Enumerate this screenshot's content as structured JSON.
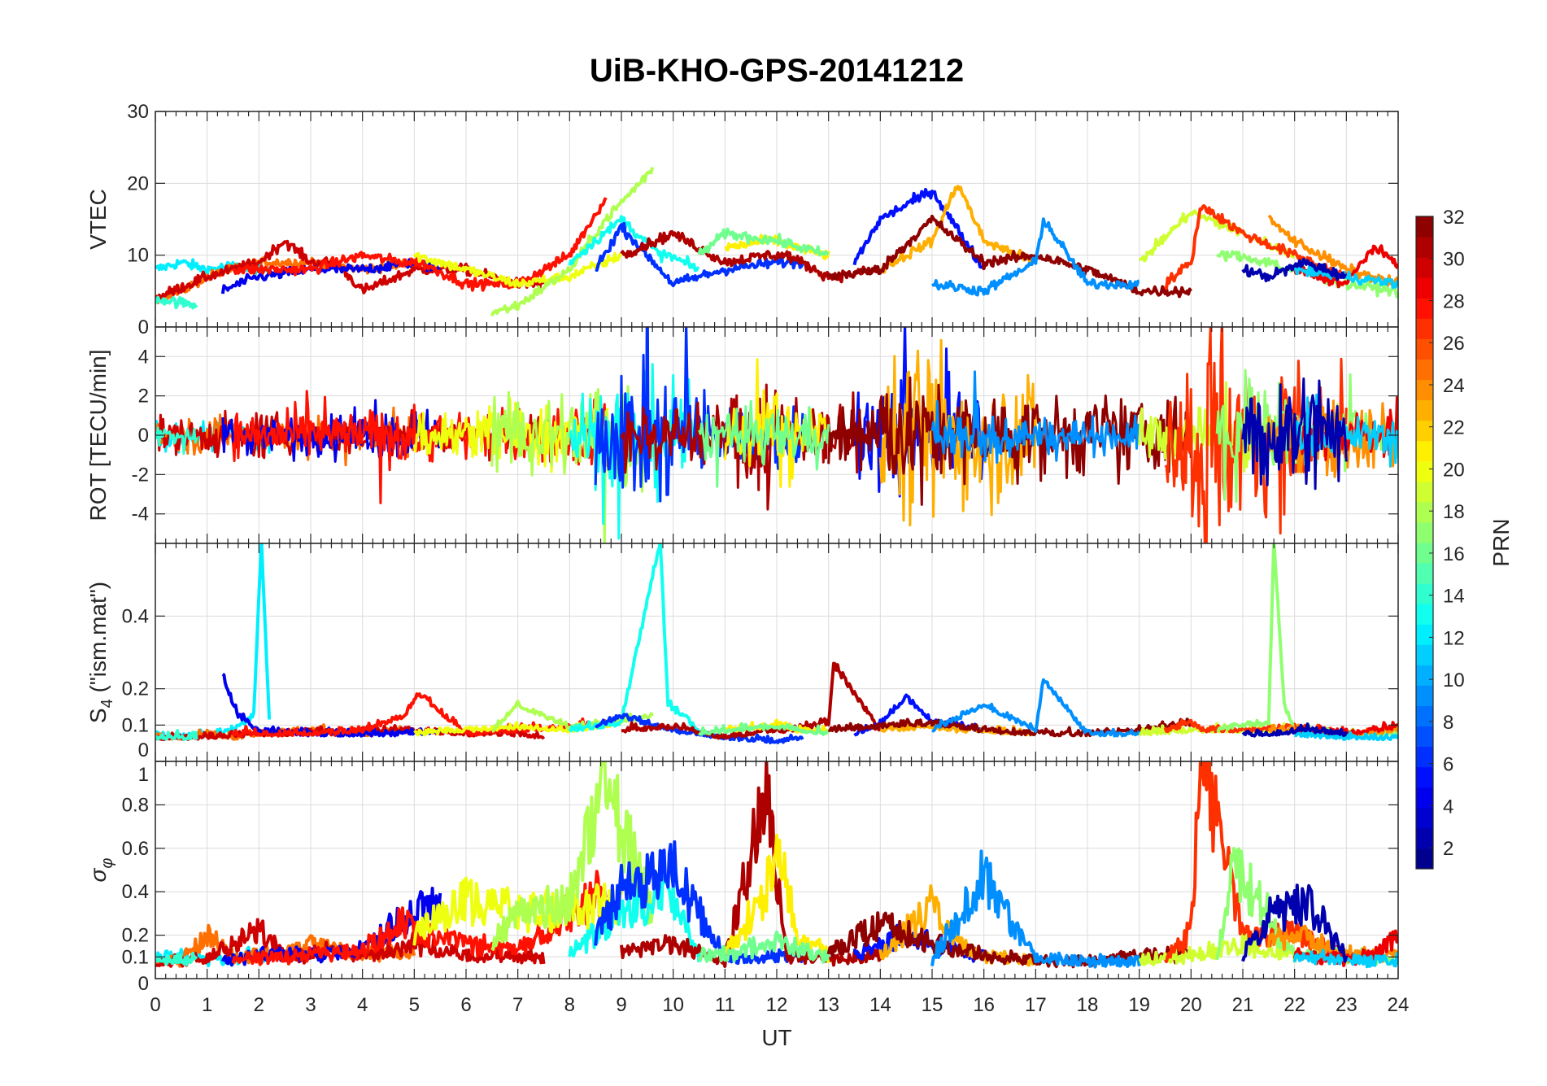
{
  "chart_data": {
    "type": "line",
    "title": "UiB-KHO-GPS-20141212",
    "xlabel": "UT",
    "xlim": [
      0,
      24
    ],
    "xticks": [
      0,
      1,
      2,
      3,
      4,
      5,
      6,
      7,
      8,
      9,
      10,
      11,
      12,
      13,
      14,
      15,
      16,
      17,
      18,
      19,
      20,
      21,
      22,
      23,
      24
    ],
    "grid": true,
    "panels": [
      {
        "key": "vtec",
        "ylabel": "VTEC",
        "ylim": [
          0,
          30
        ],
        "yticks": [
          0,
          10,
          20,
          30
        ],
        "ytick_labels": [
          "0",
          "10",
          "20",
          "30"
        ]
      },
      {
        "key": "rot",
        "ylabel": "ROT [TECU/min]",
        "ylim": [
          -5.5,
          5.5
        ],
        "yticks": [
          -4,
          -2,
          0,
          2,
          4
        ],
        "ytick_labels": [
          "-4",
          "-2",
          "0",
          "2",
          "4"
        ]
      },
      {
        "key": "s4",
        "ylabel": "S4 (\"ism.mat\")",
        "ylim": [
          0,
          0.6
        ],
        "yticks": [
          0,
          0.1,
          0.2,
          0.4
        ],
        "ytick_labels": [
          "0",
          "0.1",
          "0.2",
          "0.4"
        ]
      },
      {
        "key": "sigma",
        "ylabel": "σφ",
        "ylim": [
          0,
          1
        ],
        "yticks": [
          0,
          0.1,
          0.2,
          0.4,
          0.6,
          0.8,
          1
        ],
        "ytick_labels": [
          "0",
          "0.1",
          "0.2",
          "0.4",
          "0.6",
          "0.8",
          "1"
        ]
      }
    ],
    "colorbar": {
      "label": "PRN",
      "range": [
        1,
        32
      ],
      "ticks": [
        2,
        4,
        6,
        8,
        10,
        12,
        14,
        16,
        18,
        20,
        22,
        24,
        26,
        28,
        30,
        32
      ],
      "colormap": "jet",
      "levels": 32
    },
    "arcs": [
      {
        "prn": 12,
        "t": [
          0,
          0.5,
          1,
          1.5,
          1.9,
          2.05,
          2.2
        ],
        "vtec": [
          8,
          9,
          8,
          8.5,
          8,
          8,
          8
        ],
        "rot_amp": 0.8,
        "s4": [
          0.07,
          0.06,
          0.07,
          0.08,
          0.12,
          0.6,
          0.1
        ],
        "sigma": [
          0.08,
          0.1,
          0.08,
          0.08,
          0.1,
          0.1,
          0.08
        ]
      },
      {
        "prn": 25,
        "t": [
          0,
          0.5,
          1,
          1.5,
          2,
          3,
          4,
          5
        ],
        "vtec": [
          4,
          5,
          7,
          8,
          9,
          9,
          8,
          9
        ],
        "rot_amp": 0.9,
        "s4": [
          0.06,
          0.06,
          0.07,
          0.06,
          0.07,
          0.08,
          0.07,
          0.08
        ],
        "sigma": [
          0.07,
          0.08,
          0.2,
          0.08,
          0.1,
          0.15,
          0.1,
          0.12
        ]
      },
      {
        "prn": 30,
        "t": [
          0,
          1,
          2,
          2.5,
          3,
          3.5,
          4,
          5,
          6,
          7,
          7.5
        ],
        "vtec": [
          4,
          7,
          9,
          12,
          9,
          9,
          5,
          8,
          8,
          6,
          6
        ],
        "rot_amp": 1.0,
        "s4": [
          0.06,
          0.06,
          0.07,
          0.07,
          0.08,
          0.07,
          0.08,
          0.08,
          0.07,
          0.07,
          0.06
        ],
        "sigma": [
          0.07,
          0.08,
          0.22,
          0.1,
          0.1,
          0.12,
          0.1,
          0.15,
          0.1,
          0.1,
          0.08
        ]
      },
      {
        "prn": 4,
        "t": [
          1.3,
          1.6,
          2,
          3,
          4,
          5,
          5.5
        ],
        "vtec": [
          5,
          6,
          7,
          8,
          8,
          9,
          8
        ],
        "rot_amp": 1.0,
        "s4": [
          0.22,
          0.12,
          0.08,
          0.07,
          0.07,
          0.07,
          0.08
        ],
        "sigma": [
          0.08,
          0.08,
          0.1,
          0.1,
          0.12,
          0.3,
          0.35
        ]
      },
      {
        "prn": 14,
        "t": [
          0,
          0.8
        ],
        "vtec": [
          4,
          3
        ],
        "rot_amp": 0.6,
        "s4": [
          0.06,
          0.06
        ],
        "sigma": [
          0.08,
          0.08
        ]
      },
      {
        "prn": 28,
        "t": [
          1.5,
          3,
          4,
          4.8,
          5.1,
          6,
          7,
          8,
          8.7
        ],
        "vtec": [
          8,
          8,
          10,
          9,
          9,
          6,
          6,
          10,
          18
        ],
        "rot_amp": 1.2,
        "s4": [
          0.07,
          0.07,
          0.08,
          0.12,
          0.18,
          0.07,
          0.08,
          0.09,
          0.1
        ],
        "sigma": [
          0.08,
          0.1,
          0.12,
          0.25,
          0.2,
          0.15,
          0.12,
          0.3,
          0.4
        ]
      },
      {
        "prn": 20,
        "t": [
          5,
          6,
          7,
          8,
          9
        ],
        "vtec": [
          10,
          8,
          6,
          7,
          10
        ],
        "rot_amp": 1.1,
        "s4": [
          0.07,
          0.08,
          0.09,
          0.08,
          0.1
        ],
        "sigma": [
          0.2,
          0.35,
          0.3,
          0.3,
          0.35
        ]
      },
      {
        "prn": 18,
        "t": [
          6.5,
          7,
          8,
          8.7,
          9.6
        ],
        "vtec": [
          2,
          3,
          8,
          15,
          22
        ],
        "rot_amp": 1.5,
        "s4": [
          0.08,
          0.15,
          0.09,
          0.1,
          0.12
        ],
        "sigma": [
          0.15,
          0.3,
          0.35,
          0.87,
          0.3
        ]
      },
      {
        "prn": 13,
        "t": [
          8,
          9,
          9.75,
          9.9,
          10.5
        ],
        "vtec": [
          9,
          15,
          10,
          10,
          8
        ],
        "rot_amp": 2.0,
        "s4": [
          0.08,
          0.1,
          0.6,
          0.15,
          0.08
        ],
        "sigma": [
          0.1,
          0.3,
          0.35,
          0.4,
          0.1
        ]
      },
      {
        "prn": 6,
        "t": [
          8.5,
          9,
          10,
          11,
          12,
          12.5
        ],
        "vtec": [
          8,
          14,
          6,
          8,
          9,
          9
        ],
        "rot_amp": 1.8,
        "s4": [
          0.09,
          0.12,
          0.08,
          0.06,
          0.05,
          0.06
        ],
        "sigma": [
          0.2,
          0.4,
          0.5,
          0.08,
          0.1,
          0.1
        ]
      },
      {
        "prn": 31,
        "t": [
          9,
          10,
          11,
          11.8,
          12.2,
          13,
          13.1,
          14
        ],
        "vtec": [
          10,
          13,
          9,
          10,
          10,
          7,
          7,
          8
        ],
        "rot_amp": 1.6,
        "s4": [
          0.08,
          0.09,
          0.06,
          0.08,
          0.08,
          0.1,
          0.26,
          0.08
        ],
        "sigma": [
          0.12,
          0.15,
          0.08,
          0.83,
          0.1,
          0.08,
          0.08,
          0.1
        ]
      },
      {
        "prn": 21,
        "t": [
          11,
          11.8,
          12,
          12.4,
          13
        ],
        "vtec": [
          11,
          12,
          12,
          11,
          10
        ],
        "rot_amp": 1.4,
        "s4": [
          0.08,
          0.09,
          0.1,
          0.08,
          0.08
        ],
        "sigma": [
          0.1,
          0.4,
          0.6,
          0.2,
          0.1
        ]
      },
      {
        "prn": 16,
        "t": [
          10.5,
          11,
          12,
          13
        ],
        "vtec": [
          10,
          13,
          12,
          10
        ],
        "rot_amp": 1.3,
        "s4": [
          0.07,
          0.08,
          0.09,
          0.07
        ],
        "sigma": [
          0.1,
          0.1,
          0.15,
          0.1
        ]
      },
      {
        "prn": 5,
        "t": [
          13.5,
          14,
          14.5,
          15,
          16
        ],
        "vtec": [
          9,
          15,
          17,
          19,
          8
        ],
        "rot_amp": 2.5,
        "s4": [
          0.07,
          0.1,
          0.17,
          0.1,
          0.08
        ],
        "sigma": [
          0.1,
          0.15,
          0.2,
          0.15,
          0.1
        ]
      },
      {
        "prn": 23,
        "t": [
          14,
          15,
          15.5,
          16,
          17
        ],
        "vtec": [
          8,
          12,
          20,
          12,
          9
        ],
        "rot_amp": 3.5,
        "s4": [
          0.08,
          0.09,
          0.08,
          0.08,
          0.07
        ],
        "sigma": [
          0.1,
          0.33,
          0.15,
          0.1,
          0.08
        ]
      },
      {
        "prn": 32,
        "t": [
          13,
          14,
          15,
          16,
          17,
          18,
          19,
          20
        ],
        "vtec": [
          7,
          8,
          15,
          9,
          10,
          8,
          5,
          5
        ],
        "rot_amp": 2.2,
        "s4": [
          0.08,
          0.09,
          0.1,
          0.08,
          0.07,
          0.07,
          0.08,
          0.1
        ],
        "sigma": [
          0.1,
          0.25,
          0.15,
          0.1,
          0.08,
          0.07,
          0.1,
          0.1
        ]
      },
      {
        "prn": 9,
        "t": [
          15,
          16,
          17,
          17.15,
          18,
          19
        ],
        "vtec": [
          6,
          5,
          9,
          15,
          6,
          6
        ],
        "rot_amp": 1.0,
        "s4": [
          0.08,
          0.15,
          0.08,
          0.22,
          0.07,
          0.07
        ],
        "sigma": [
          0.08,
          0.46,
          0.08,
          0.08,
          0.07,
          0.07
        ]
      },
      {
        "prn": 19,
        "t": [
          19,
          20,
          21,
          22
        ],
        "vtec": [
          9,
          16,
          13,
          10
        ],
        "rot_amp": 1.5,
        "s4": [
          0.07,
          0.08,
          0.08,
          0.08
        ],
        "sigma": [
          0.08,
          0.1,
          0.15,
          0.1
        ]
      },
      {
        "prn": 27,
        "t": [
          19.5,
          20,
          20.2,
          21,
          22,
          23
        ],
        "vtec": [
          6,
          9,
          17,
          13,
          10,
          7
        ],
        "rot_amp": 3.0,
        "s4": [
          0.08,
          0.1,
          0.08,
          0.08,
          0.09,
          0.07
        ],
        "sigma": [
          0.08,
          0.2,
          1.0,
          0.2,
          0.2,
          0.1
        ]
      },
      {
        "prn": 17,
        "t": [
          20.5,
          20.8,
          21.5,
          21.6,
          21.8,
          22,
          23,
          24
        ],
        "vtec": [
          10,
          10,
          9,
          9,
          8,
          8,
          6,
          5
        ],
        "rot_amp": 1.8,
        "s4": [
          0.08,
          0.09,
          0.1,
          0.6,
          0.15,
          0.08,
          0.07,
          0.07
        ],
        "sigma": [
          0.1,
          0.5,
          0.3,
          0.2,
          0.15,
          0.1,
          0.1,
          0.08
        ]
      },
      {
        "prn": 24,
        "t": [
          21.5,
          22,
          23,
          24
        ],
        "vtec": [
          15,
          12,
          8,
          6
        ],
        "rot_amp": 2.0,
        "s4": [
          0.08,
          0.08,
          0.07,
          0.08
        ],
        "sigma": [
          0.15,
          0.2,
          0.1,
          0.1
        ]
      },
      {
        "prn": 29,
        "t": [
          22,
          23,
          23.5,
          24
        ],
        "vtec": [
          8,
          6,
          11,
          9
        ],
        "rot_amp": 1.4,
        "s4": [
          0.08,
          0.07,
          0.08,
          0.09
        ],
        "sigma": [
          0.1,
          0.08,
          0.1,
          0.18
        ]
      },
      {
        "prn": 11,
        "t": [
          22,
          23,
          24
        ],
        "vtec": [
          8,
          7,
          6
        ],
        "rot_amp": 1.0,
        "s4": [
          0.07,
          0.06,
          0.06
        ],
        "sigma": [
          0.08,
          0.08,
          0.07
        ]
      },
      {
        "prn": 2,
        "t": [
          21,
          21.5,
          22.2,
          23
        ],
        "vtec": [
          8,
          7,
          9,
          7
        ],
        "rot_amp": 2.2,
        "s4": [
          0.07,
          0.07,
          0.08,
          0.07
        ],
        "sigma": [
          0.1,
          0.28,
          0.35,
          0.1
        ]
      }
    ]
  }
}
